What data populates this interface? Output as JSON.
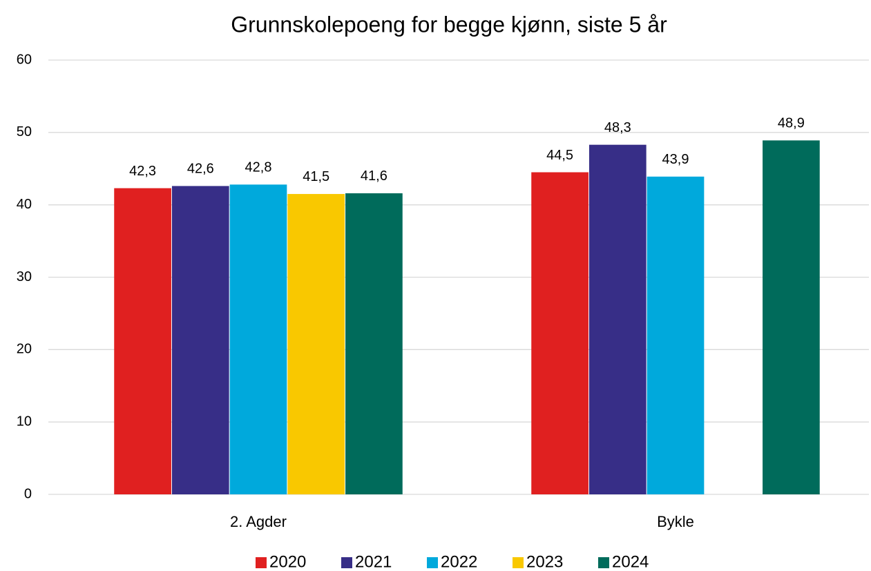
{
  "chart_data": {
    "type": "bar",
    "title": "Grunnskolepoeng for begge kjønn, siste 5 år",
    "categories": [
      "2. Agder",
      "Bykle"
    ],
    "series": [
      {
        "name": "2020",
        "color": "#e02020",
        "values": [
          42.3,
          44.5
        ],
        "value_labels": [
          "42,3",
          "44,5"
        ]
      },
      {
        "name": "2021",
        "color": "#372e87",
        "values": [
          42.6,
          48.3
        ],
        "value_labels": [
          "42,6",
          "48,3"
        ]
      },
      {
        "name": "2022",
        "color": "#00a9dc",
        "values": [
          42.8,
          43.9
        ],
        "value_labels": [
          "42,8",
          "43,9"
        ]
      },
      {
        "name": "2023",
        "color": "#f9c800",
        "values": [
          41.5,
          null
        ],
        "value_labels": [
          "41,5",
          null
        ]
      },
      {
        "name": "2024",
        "color": "#006b5b",
        "values": [
          41.6,
          48.9
        ],
        "value_labels": [
          "41,6",
          "48,9"
        ]
      }
    ],
    "ylim": [
      0,
      60
    ],
    "yticks": [
      0,
      10,
      20,
      30,
      40,
      50,
      60
    ],
    "grid": true,
    "legend": "bottom"
  }
}
